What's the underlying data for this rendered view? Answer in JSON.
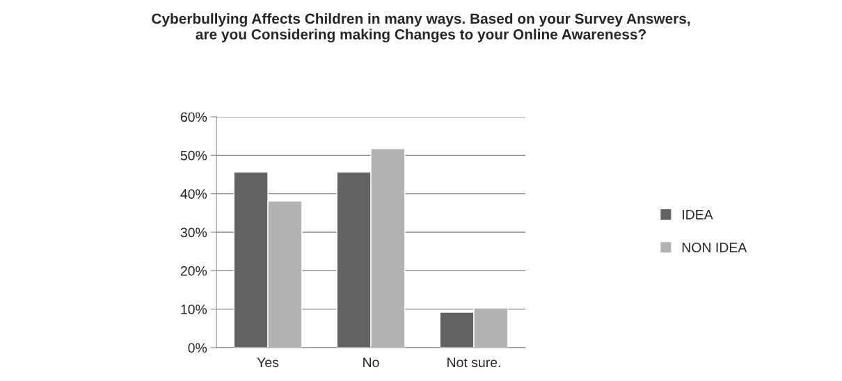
{
  "chart_data": {
    "type": "bar",
    "title": "Cyberbullying Affects Children in many ways. Based on your Survey Answers,\nare you Considering making Changes to your Online Awareness?",
    "categories": [
      "Yes",
      "No",
      "Not sure."
    ],
    "series": [
      {
        "name": "IDEA",
        "color": "#626262",
        "values": [
          45.6,
          45.6,
          9.2
        ]
      },
      {
        "name": "NON IDEA",
        "color": "#b2b2b2",
        "values": [
          38.1,
          51.7,
          10.3
        ]
      }
    ],
    "ylim": [
      0,
      60
    ],
    "yticks": [
      {
        "value": 0,
        "label": "0%"
      },
      {
        "value": 10,
        "label": "10%"
      },
      {
        "value": 20,
        "label": "20%"
      },
      {
        "value": 30,
        "label": "30%"
      },
      {
        "value": 40,
        "label": "40%"
      },
      {
        "value": 50,
        "label": "50%"
      },
      {
        "value": 60,
        "label": "60%"
      }
    ],
    "grid": "y",
    "legend": "right"
  }
}
